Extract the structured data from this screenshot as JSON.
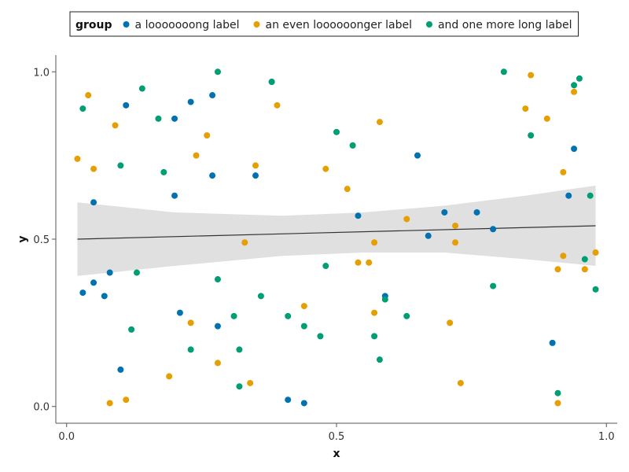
{
  "chart_data": {
    "type": "scatter",
    "xlabel": "x",
    "ylabel": "y",
    "xlim": [
      -0.02,
      1.02
    ],
    "ylim": [
      -0.05,
      1.05
    ],
    "xticks": [
      0.0,
      0.5,
      1.0
    ],
    "yticks": [
      0.0,
      0.5,
      1.0
    ],
    "xtick_labels": [
      "0.0",
      "0.5",
      "1.0"
    ],
    "ytick_labels": [
      "0.0",
      "0.5",
      "1.0"
    ],
    "grid": false,
    "legend": {
      "title": "group",
      "position": "top"
    },
    "series": [
      {
        "name": "a looooooong label",
        "color": "#0072B2",
        "points": [
          [
            0.03,
            0.34
          ],
          [
            0.05,
            0.61
          ],
          [
            0.05,
            0.37
          ],
          [
            0.07,
            0.33
          ],
          [
            0.08,
            0.4
          ],
          [
            0.1,
            0.11
          ],
          [
            0.11,
            0.9
          ],
          [
            0.2,
            0.86
          ],
          [
            0.2,
            0.63
          ],
          [
            0.21,
            0.28
          ],
          [
            0.23,
            0.91
          ],
          [
            0.27,
            0.69
          ],
          [
            0.27,
            0.93
          ],
          [
            0.28,
            0.24
          ],
          [
            0.35,
            0.69
          ],
          [
            0.38,
            0.97
          ],
          [
            0.41,
            0.02
          ],
          [
            0.44,
            0.01
          ],
          [
            0.54,
            0.57
          ],
          [
            0.59,
            0.33
          ],
          [
            0.65,
            0.75
          ],
          [
            0.67,
            0.51
          ],
          [
            0.7,
            0.58
          ],
          [
            0.76,
            0.58
          ],
          [
            0.79,
            0.53
          ],
          [
            0.9,
            0.19
          ],
          [
            0.93,
            0.63
          ],
          [
            0.94,
            0.77
          ]
        ]
      },
      {
        "name": "an even loooooonger label",
        "color": "#E69F00",
        "points": [
          [
            0.02,
            0.74
          ],
          [
            0.04,
            0.93
          ],
          [
            0.05,
            0.71
          ],
          [
            0.08,
            0.01
          ],
          [
            0.09,
            0.84
          ],
          [
            0.11,
            0.02
          ],
          [
            0.19,
            0.09
          ],
          [
            0.23,
            0.25
          ],
          [
            0.24,
            0.75
          ],
          [
            0.26,
            0.81
          ],
          [
            0.28,
            0.13
          ],
          [
            0.33,
            0.49
          ],
          [
            0.34,
            0.07
          ],
          [
            0.35,
            0.72
          ],
          [
            0.39,
            0.9
          ],
          [
            0.44,
            0.3
          ],
          [
            0.48,
            0.71
          ],
          [
            0.52,
            0.65
          ],
          [
            0.54,
            0.43
          ],
          [
            0.56,
            0.43
          ],
          [
            0.57,
            0.28
          ],
          [
            0.57,
            0.49
          ],
          [
            0.58,
            0.85
          ],
          [
            0.63,
            0.56
          ],
          [
            0.71,
            0.25
          ],
          [
            0.72,
            0.54
          ],
          [
            0.72,
            0.49
          ],
          [
            0.73,
            0.07
          ],
          [
            0.85,
            0.89
          ],
          [
            0.86,
            0.99
          ],
          [
            0.89,
            0.86
          ],
          [
            0.91,
            0.01
          ],
          [
            0.91,
            0.41
          ],
          [
            0.92,
            0.7
          ],
          [
            0.92,
            0.45
          ],
          [
            0.94,
            0.94
          ],
          [
            0.96,
            0.41
          ],
          [
            0.98,
            0.46
          ]
        ]
      },
      {
        "name": "and one more long label",
        "color": "#009E73",
        "points": [
          [
            0.03,
            0.89
          ],
          [
            0.1,
            0.72
          ],
          [
            0.12,
            0.23
          ],
          [
            0.13,
            0.4
          ],
          [
            0.14,
            0.95
          ],
          [
            0.17,
            0.86
          ],
          [
            0.18,
            0.7
          ],
          [
            0.23,
            0.17
          ],
          [
            0.28,
            1.0
          ],
          [
            0.28,
            0.38
          ],
          [
            0.31,
            0.27
          ],
          [
            0.32,
            0.06
          ],
          [
            0.32,
            0.17
          ],
          [
            0.36,
            0.33
          ],
          [
            0.38,
            0.97
          ],
          [
            0.41,
            0.27
          ],
          [
            0.44,
            0.24
          ],
          [
            0.47,
            0.21
          ],
          [
            0.48,
            0.42
          ],
          [
            0.5,
            0.82
          ],
          [
            0.53,
            0.78
          ],
          [
            0.57,
            0.21
          ],
          [
            0.58,
            0.14
          ],
          [
            0.59,
            0.32
          ],
          [
            0.63,
            0.27
          ],
          [
            0.79,
            0.36
          ],
          [
            0.81,
            1.0
          ],
          [
            0.86,
            0.81
          ],
          [
            0.91,
            0.04
          ],
          [
            0.94,
            0.96
          ],
          [
            0.95,
            0.98
          ],
          [
            0.96,
            0.44
          ],
          [
            0.97,
            0.63
          ],
          [
            0.98,
            0.35
          ]
        ]
      }
    ],
    "trend": {
      "type": "linear",
      "color": "#333333",
      "band_color": "#e0e0e0",
      "line": [
        [
          0.02,
          0.5
        ],
        [
          0.98,
          0.54
        ]
      ],
      "band_upper": [
        [
          0.02,
          0.61
        ],
        [
          0.2,
          0.58
        ],
        [
          0.4,
          0.57
        ],
        [
          0.55,
          0.58
        ],
        [
          0.7,
          0.6
        ],
        [
          0.85,
          0.63
        ],
        [
          0.98,
          0.66
        ]
      ],
      "band_lower": [
        [
          0.02,
          0.39
        ],
        [
          0.2,
          0.42
        ],
        [
          0.4,
          0.45
        ],
        [
          0.55,
          0.46
        ],
        [
          0.7,
          0.46
        ],
        [
          0.85,
          0.44
        ],
        [
          0.98,
          0.42
        ]
      ]
    }
  }
}
